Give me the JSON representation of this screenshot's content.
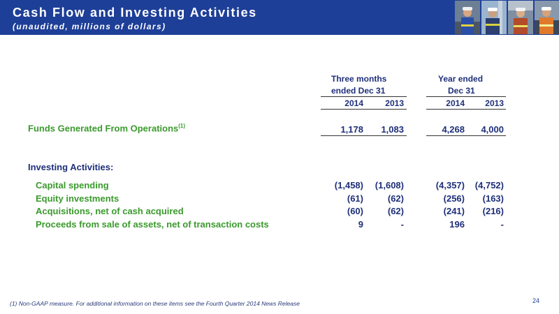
{
  "header": {
    "title": "Cash Flow and Investing Activities",
    "subtitle": "(unaudited, millions of dollars)",
    "photos": [
      "photo-worker-1",
      "photo-worker-2",
      "photo-worker-3",
      "photo-worker-4"
    ]
  },
  "table": {
    "groups": [
      {
        "line1": "Three months",
        "line2": "ended Dec 31"
      },
      {
        "line1": "Year ended",
        "line2": "Dec 31"
      }
    ],
    "years": [
      "2014",
      "2013",
      "2014",
      "2013"
    ],
    "funds": {
      "label": "Funds Generated From Operations",
      "note": "(1)",
      "values": [
        "1,178",
        "1,083",
        "4,268",
        "4,000"
      ]
    },
    "investing_title": "Investing Activities:",
    "rows": [
      {
        "label": "Capital spending",
        "values": [
          "(1,458)",
          "(1,608)",
          "(4,357)",
          "(4,752)"
        ]
      },
      {
        "label": "Equity investments",
        "values": [
          "(61)",
          "(62)",
          "(256)",
          "(163)"
        ]
      },
      {
        "label": "Acquisitions, net of cash acquired",
        "values": [
          "(60)",
          "(62)",
          "(241)",
          "(216)"
        ]
      },
      {
        "label": "Proceeds from sale of assets, net of transaction costs",
        "values": [
          "9",
          "-",
          "196",
          "-"
        ]
      }
    ]
  },
  "footnote": "(1) Non-GAAP measure. For additional information on these items see the Fourth Quarter 2014 News Release",
  "page_number": "24"
}
